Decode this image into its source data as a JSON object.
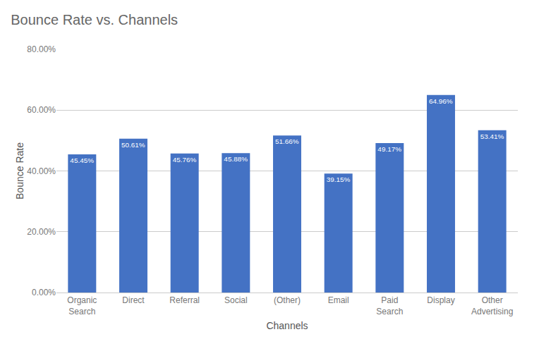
{
  "chart_data": {
    "type": "bar",
    "title": "Bounce Rate vs. Channels",
    "xlabel": "Channels",
    "ylabel": "Bounce Rate",
    "categories": [
      "Organic\nSearch",
      "Direct",
      "Referral",
      "Social",
      "(Other)",
      "Email",
      "Paid\nSearch",
      "Display",
      "Other\nAdvertising"
    ],
    "values": [
      45.45,
      50.61,
      45.76,
      45.88,
      51.66,
      39.15,
      49.17,
      64.96,
      53.41
    ],
    "value_labels": [
      "45.45%",
      "50.61%",
      "45.76%",
      "45.88%",
      "51.66%",
      "39.15%",
      "49.17%",
      "64.96%",
      "53.41%"
    ],
    "data_labels": true,
    "color": "#4472C4",
    "ylim": [
      0,
      80
    ],
    "yticks": [
      {
        "value": 0,
        "label": "0.00%"
      },
      {
        "value": 20,
        "label": "20.00%"
      },
      {
        "value": 40,
        "label": "40.00%"
      },
      {
        "value": 60,
        "label": "60.00%"
      },
      {
        "value": 80,
        "label": "80.00%"
      }
    ],
    "grid": true
  }
}
